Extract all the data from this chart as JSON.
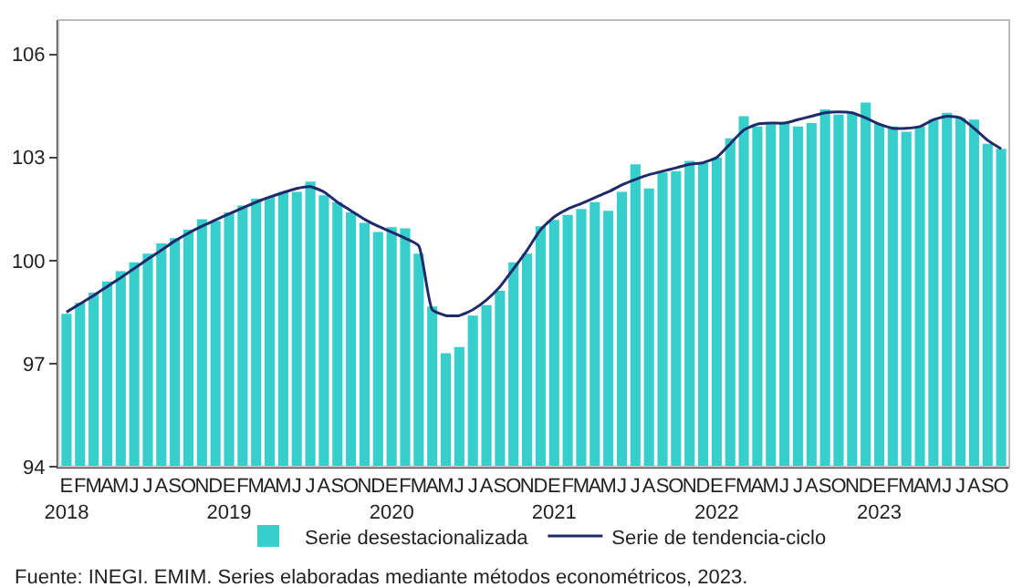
{
  "chart_data": {
    "type": "bar",
    "categories": [
      "E\n2018",
      "F",
      "M",
      "A",
      "M",
      "J",
      "J",
      "A",
      "S",
      "O",
      "N",
      "D",
      "E\n2019",
      "F",
      "M",
      "A",
      "M",
      "J",
      "J",
      "A",
      "S",
      "O",
      "N",
      "D",
      "E\n2020",
      "F",
      "M",
      "A",
      "M",
      "J",
      "J",
      "A",
      "S",
      "O",
      "N",
      "D",
      "E\n2021",
      "F",
      "M",
      "A",
      "M",
      "J",
      "J",
      "A",
      "S",
      "O",
      "N",
      "D",
      "E\n2022",
      "F",
      "M",
      "A",
      "M",
      "J",
      "J",
      "A",
      "S",
      "O",
      "N",
      "D",
      "E\n2023",
      "F",
      "M",
      "A",
      "M",
      "J",
      "J",
      "A",
      "S",
      "O"
    ],
    "series": [
      {
        "name": "Serie desestacionalizada",
        "color": "#36cfcc",
        "values": [
          98.45,
          98.77,
          99.07,
          99.39,
          99.69,
          99.95,
          100.2,
          100.5,
          100.65,
          100.9,
          101.2,
          101.15,
          101.4,
          101.6,
          101.8,
          101.85,
          102.0,
          102.0,
          102.3,
          101.9,
          101.7,
          101.4,
          101.1,
          100.83,
          100.97,
          100.94,
          100.2,
          98.66,
          97.3,
          97.48,
          98.4,
          98.7,
          99.12,
          99.95,
          100.2,
          101.0,
          101.18,
          101.33,
          101.5,
          101.7,
          101.45,
          102.0,
          102.8,
          102.1,
          102.56,
          102.6,
          102.9,
          102.85,
          103.0,
          103.56,
          104.2,
          103.9,
          103.97,
          104.0,
          103.9,
          104.0,
          104.4,
          104.25,
          104.3,
          104.6,
          103.97,
          103.9,
          103.75,
          103.9,
          104.1,
          104.3,
          104.15,
          104.1,
          103.4,
          103.25
        ]
      },
      {
        "name": "Serie de tendencia-ciclo",
        "type": "line",
        "color": "#1f2a6b",
        "values": [
          98.5,
          98.74,
          98.98,
          99.24,
          99.5,
          99.77,
          100.04,
          100.3,
          100.57,
          100.8,
          101.0,
          101.18,
          101.36,
          101.53,
          101.7,
          101.85,
          101.98,
          102.1,
          102.15,
          102.0,
          101.7,
          101.45,
          101.2,
          101.0,
          100.83,
          100.65,
          100.43,
          98.57,
          98.4,
          98.4,
          98.57,
          98.85,
          99.24,
          99.76,
          100.3,
          100.9,
          101.27,
          101.5,
          101.66,
          101.83,
          102.0,
          102.2,
          102.36,
          102.5,
          102.6,
          102.7,
          102.8,
          102.85,
          103.0,
          103.4,
          103.8,
          103.97,
          104.0,
          104.0,
          104.1,
          104.2,
          104.3,
          104.33,
          104.3,
          104.15,
          103.97,
          103.85,
          103.85,
          103.9,
          104.1,
          104.2,
          104.15,
          103.85,
          103.5,
          103.25
        ]
      }
    ],
    "ylim": [
      94,
      107
    ],
    "yticks": [
      94,
      97,
      100,
      103,
      106
    ],
    "grid": false,
    "legend": "bottom",
    "annotations": [
      "Fuente: INEGI. EMIM. Series elaboradas mediante métodos econométricos, 2023."
    ]
  }
}
